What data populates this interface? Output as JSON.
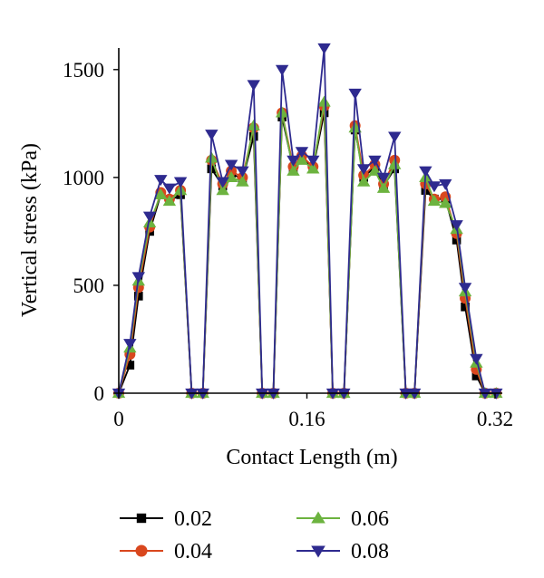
{
  "chart_data": {
    "type": "line",
    "title": "",
    "xlabel": "Contact Length (m)",
    "ylabel": "Vertical stress (kPa)",
    "xlim": [
      0,
      0.32
    ],
    "ylim": [
      0,
      1600
    ],
    "xticks": [
      0,
      0.16,
      0.32
    ],
    "yticks": [
      0,
      500,
      1000,
      1500
    ],
    "xtick_labels": [
      "0",
      "0.16",
      "0.32"
    ],
    "ytick_labels": [
      "0",
      "500",
      "1000",
      "1500"
    ],
    "grid": false,
    "legend_position": "bottom",
    "x": [
      0,
      0.0095,
      0.0168,
      0.0263,
      0.0357,
      0.0431,
      0.0525,
      0.062,
      0.0715,
      0.0789,
      0.0884,
      0.0957,
      0.1052,
      0.1147,
      0.122,
      0.1315,
      0.1389,
      0.1484,
      0.1557,
      0.1652,
      0.1747,
      0.182,
      0.1915,
      0.201,
      0.2083,
      0.2178,
      0.2252,
      0.2346,
      0.2441,
      0.2515,
      0.2609,
      0.2683,
      0.2778,
      0.2873,
      0.2946,
      0.3041,
      0.3115,
      0.321
    ],
    "series": [
      {
        "name": "0.02",
        "color": "#000000",
        "marker": "square",
        "values": [
          0,
          130,
          450,
          750,
          920,
          890,
          920,
          0,
          0,
          1040,
          960,
          1020,
          990,
          1190,
          0,
          0,
          1280,
          1040,
          1090,
          1040,
          1300,
          0,
          0,
          1220,
          1000,
          1050,
          960,
          1040,
          0,
          0,
          940,
          900,
          900,
          710,
          400,
          80,
          0,
          0
        ]
      },
      {
        "name": "0.04",
        "color": "#d9471e",
        "marker": "circle",
        "values": [
          0,
          180,
          490,
          770,
          930,
          900,
          940,
          0,
          0,
          1080,
          970,
          1030,
          1000,
          1230,
          0,
          0,
          1300,
          1050,
          1100,
          1050,
          1330,
          0,
          0,
          1240,
          1010,
          1060,
          970,
          1080,
          0,
          0,
          970,
          900,
          910,
          740,
          440,
          110,
          0,
          0
        ]
      },
      {
        "name": "0.06",
        "color": "#6cb33f",
        "marker": "triangle-up",
        "values": [
          0,
          210,
          520,
          790,
          920,
          890,
          940,
          0,
          0,
          1090,
          940,
          1000,
          980,
          1240,
          0,
          0,
          1300,
          1030,
          1080,
          1040,
          1350,
          0,
          0,
          1230,
          980,
          1030,
          950,
          1060,
          0,
          0,
          1000,
          890,
          880,
          760,
          470,
          140,
          0,
          0
        ]
      },
      {
        "name": "0.08",
        "color": "#2e2a8f",
        "marker": "triangle-down",
        "values": [
          0,
          230,
          540,
          820,
          990,
          950,
          980,
          0,
          0,
          1200,
          980,
          1060,
          1030,
          1430,
          0,
          0,
          1500,
          1080,
          1120,
          1080,
          1600,
          0,
          0,
          1390,
          1040,
          1080,
          1000,
          1190,
          0,
          0,
          1030,
          960,
          970,
          780,
          490,
          160,
          0,
          0
        ]
      }
    ]
  }
}
